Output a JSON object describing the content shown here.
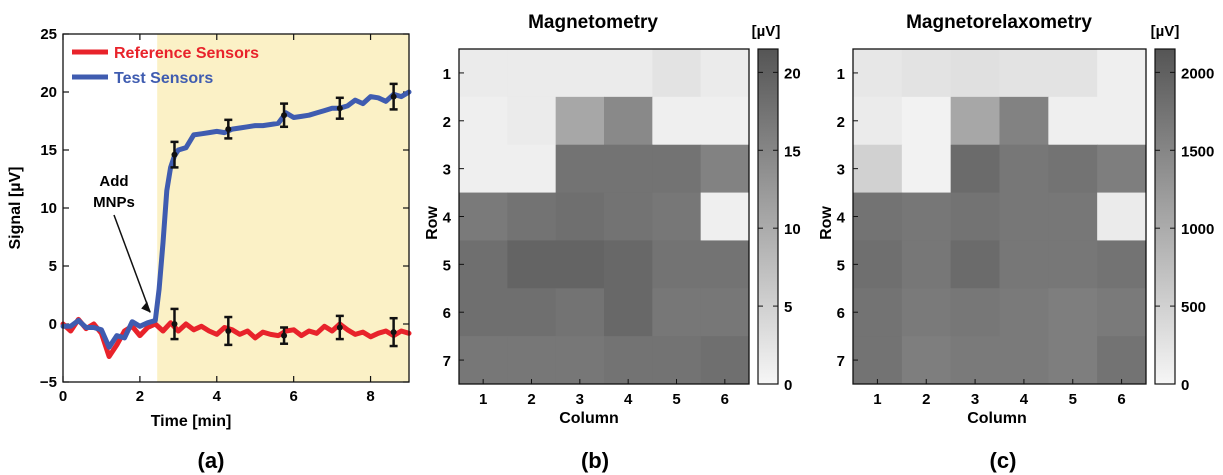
{
  "figure": {
    "panel_labels": [
      "(a)",
      "(b)",
      "(c)"
    ]
  },
  "chart_data": [
    {
      "type": "line",
      "xlabel": "Time [min]",
      "ylabel": "Signal [µV]",
      "xlim": [
        0,
        9
      ],
      "ylim": [
        -5,
        25
      ],
      "xticks": [
        0,
        2,
        4,
        6,
        8
      ],
      "yticks": [
        -5,
        0,
        5,
        10,
        15,
        20,
        25
      ],
      "shaded_region": {
        "x_start": 2.45,
        "x_end": 9,
        "color": "#fbf1c6"
      },
      "legend": {
        "position": "top-left"
      },
      "annotation": {
        "text_lines": [
          "Add",
          "MNPs"
        ],
        "target": [
          2.45,
          0.3
        ]
      },
      "series": [
        {
          "name": "Reference Sensors",
          "color": "#e8232b",
          "x": [
            0,
            0.2,
            0.4,
            0.6,
            0.8,
            1.0,
            1.2,
            1.4,
            1.6,
            1.8,
            2.0,
            2.2,
            2.4,
            2.6,
            2.8,
            3.0,
            3.2,
            3.4,
            3.6,
            3.8,
            4.0,
            4.2,
            4.4,
            4.6,
            4.8,
            5.0,
            5.2,
            5.4,
            5.6,
            5.8,
            6.0,
            6.2,
            6.4,
            6.6,
            6.8,
            7.0,
            7.2,
            7.4,
            7.6,
            7.8,
            8.0,
            8.2,
            8.4,
            8.6,
            8.8,
            9.0
          ],
          "y": [
            0,
            -0.6,
            0.4,
            -0.4,
            0.0,
            -0.8,
            -2.8,
            -1.8,
            -0.6,
            -0.2,
            -1.0,
            -0.3,
            0.0,
            -0.6,
            0.1,
            -0.6,
            0.0,
            -0.5,
            -0.2,
            -0.6,
            -0.9,
            -0.3,
            -0.5,
            -0.9,
            -0.6,
            -1.2,
            -0.7,
            -0.9,
            -1.0,
            -0.6,
            -0.5,
            -1.0,
            -0.6,
            -0.8,
            -0.2,
            -0.6,
            0.0,
            -0.5,
            -0.9,
            -0.7,
            -1.1,
            -0.8,
            -0.6,
            -1.0,
            -0.6,
            -0.8
          ],
          "error_bars": [
            {
              "x": 2.9,
              "y": 0.0,
              "err": 1.3
            },
            {
              "x": 4.3,
              "y": -0.6,
              "err": 1.2
            },
            {
              "x": 5.75,
              "y": -1.0,
              "err": 0.7
            },
            {
              "x": 7.2,
              "y": -0.3,
              "err": 1.0
            },
            {
              "x": 8.6,
              "y": -0.7,
              "err": 1.2
            }
          ]
        },
        {
          "name": "Test Sensors",
          "color": "#3f5cb0",
          "x": [
            0,
            0.2,
            0.4,
            0.6,
            0.8,
            1.0,
            1.2,
            1.4,
            1.6,
            1.8,
            2.0,
            2.2,
            2.4,
            2.5,
            2.6,
            2.7,
            2.8,
            2.9,
            3.0,
            3.2,
            3.4,
            3.6,
            3.8,
            4.0,
            4.2,
            4.4,
            4.6,
            4.8,
            5.0,
            5.2,
            5.4,
            5.6,
            5.8,
            6.0,
            6.2,
            6.4,
            6.6,
            6.8,
            7.0,
            7.2,
            7.4,
            7.6,
            7.8,
            8.0,
            8.2,
            8.4,
            8.6,
            8.8,
            9.0
          ],
          "y": [
            -0.2,
            -0.2,
            0.3,
            -0.3,
            -0.3,
            -0.5,
            -2.0,
            -1.0,
            -1.2,
            0.2,
            -0.2,
            0.1,
            0.3,
            3.0,
            7.0,
            11.5,
            13.5,
            14.5,
            15.0,
            15.2,
            16.3,
            16.4,
            16.5,
            16.6,
            16.5,
            16.8,
            16.9,
            17.0,
            17.1,
            17.1,
            17.2,
            17.3,
            18.2,
            17.8,
            17.9,
            18.0,
            18.2,
            18.4,
            18.6,
            18.6,
            18.8,
            19.3,
            19.0,
            19.6,
            19.5,
            19.2,
            19.8,
            19.6,
            20.0
          ],
          "error_bars": [
            {
              "x": 2.9,
              "y": 14.6,
              "err": 1.1
            },
            {
              "x": 4.3,
              "y": 16.8,
              "err": 0.8
            },
            {
              "x": 5.75,
              "y": 18.0,
              "err": 1.0
            },
            {
              "x": 7.2,
              "y": 18.6,
              "err": 0.9
            },
            {
              "x": 8.6,
              "y": 19.6,
              "err": 1.1
            }
          ]
        }
      ]
    },
    {
      "type": "heatmap",
      "title": "Magnetometry",
      "xlabel": "Column",
      "ylabel": "Row",
      "x": [
        1,
        2,
        3,
        4,
        5,
        6
      ],
      "y": [
        1,
        2,
        3,
        4,
        5,
        6,
        7
      ],
      "colorbar": {
        "label": "[µV]",
        "min": 0,
        "max": 21.5,
        "ticks": [
          0,
          5,
          10,
          15,
          20
        ]
      },
      "z": [
        [
          1.5,
          1.5,
          1.5,
          1.5,
          2.5,
          1.5
        ],
        [
          1.0,
          1.5,
          10.5,
          14.5,
          1.0,
          1.0
        ],
        [
          1.0,
          1.0,
          17.5,
          17.5,
          17.5,
          15.5
        ],
        [
          16.5,
          17.5,
          18.0,
          17.5,
          17.0,
          1.0
        ],
        [
          18.0,
          19.5,
          19.5,
          19.0,
          17.5,
          17.5
        ],
        [
          18.0,
          18.0,
          17.5,
          19.0,
          17.0,
          17.0
        ],
        [
          17.0,
          17.0,
          17.0,
          17.5,
          17.5,
          18.0
        ]
      ]
    },
    {
      "type": "heatmap",
      "title": "Magnetorelaxometry",
      "xlabel": "Column",
      "ylabel": "Row",
      "x": [
        1,
        2,
        3,
        4,
        5,
        6
      ],
      "y": [
        1,
        2,
        3,
        4,
        5,
        6,
        7
      ],
      "colorbar": {
        "label": "[µV]",
        "min": 0,
        "max": 2150,
        "ticks": [
          0,
          500,
          1000,
          1500,
          2000
        ]
      },
      "z": [
        [
          200,
          250,
          300,
          250,
          250,
          100
        ],
        [
          150,
          50,
          1050,
          1550,
          100,
          100
        ],
        [
          500,
          50,
          1850,
          1700,
          1750,
          1600
        ],
        [
          1750,
          1700,
          1750,
          1700,
          1700,
          150
        ],
        [
          1800,
          1700,
          1850,
          1700,
          1700,
          1750
        ],
        [
          1750,
          1650,
          1700,
          1650,
          1600,
          1650
        ],
        [
          1750,
          1600,
          1650,
          1650,
          1600,
          1750
        ]
      ]
    }
  ]
}
